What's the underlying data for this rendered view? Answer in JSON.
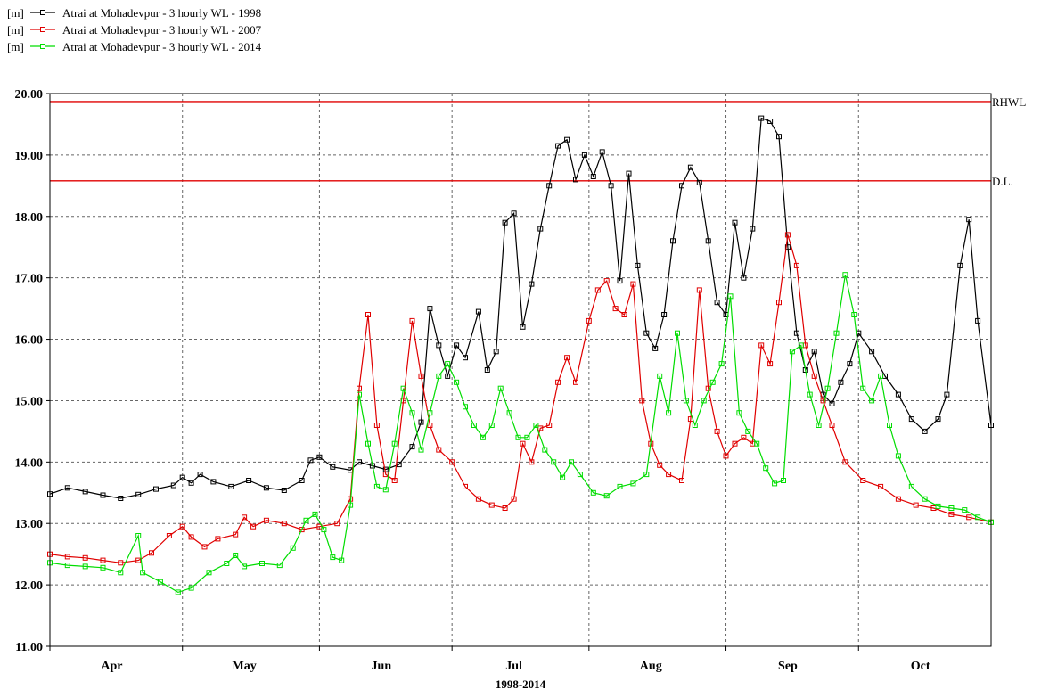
{
  "chart_data": {
    "type": "line",
    "xlabel": "1998-2014",
    "ylabel": "",
    "unit": "[m]",
    "ylim": [
      11.0,
      20.0
    ],
    "xlim": [
      "04-01",
      "10-31"
    ],
    "yticks": [
      "11.00",
      "12.00",
      "13.00",
      "14.00",
      "15.00",
      "16.00",
      "17.00",
      "18.00",
      "19.00",
      "20.00"
    ],
    "month_labels": [
      "Apr",
      "May",
      "Jun",
      "Jul",
      "Aug",
      "Sep",
      "Oct"
    ],
    "grid": true,
    "legend_position": "top-left",
    "reference_lines": [
      {
        "label": "RHWL",
        "value": 19.87,
        "color": "#e00000"
      },
      {
        "label": "D.L.",
        "value": 18.58,
        "color": "#e00000"
      }
    ],
    "series": [
      {
        "name": "Atrai at Mohadevpur - 3 hourly WL - 1998",
        "color": "#000000",
        "points": [
          [
            "04-01",
            13.48
          ],
          [
            "04-05",
            13.58
          ],
          [
            "04-09",
            13.52
          ],
          [
            "04-13",
            13.46
          ],
          [
            "04-17",
            13.41
          ],
          [
            "04-21",
            13.47
          ],
          [
            "04-25",
            13.56
          ],
          [
            "04-29",
            13.62
          ],
          [
            "05-01",
            13.75
          ],
          [
            "05-03",
            13.66
          ],
          [
            "05-05",
            13.8
          ],
          [
            "05-08",
            13.68
          ],
          [
            "05-12",
            13.6
          ],
          [
            "05-16",
            13.7
          ],
          [
            "05-20",
            13.58
          ],
          [
            "05-24",
            13.54
          ],
          [
            "05-28",
            13.7
          ],
          [
            "05-30",
            14.03
          ],
          [
            "06-01",
            14.08
          ],
          [
            "06-04",
            13.92
          ],
          [
            "06-08",
            13.87
          ],
          [
            "06-10",
            14.0
          ],
          [
            "06-13",
            13.94
          ],
          [
            "06-16",
            13.88
          ],
          [
            "06-19",
            13.96
          ],
          [
            "06-22",
            14.25
          ],
          [
            "06-24",
            14.65
          ],
          [
            "06-26",
            16.5
          ],
          [
            "06-28",
            15.9
          ],
          [
            "06-30",
            15.4
          ],
          [
            "07-02",
            15.9
          ],
          [
            "07-04",
            15.7
          ],
          [
            "07-07",
            16.45
          ],
          [
            "07-09",
            15.5
          ],
          [
            "07-11",
            15.8
          ],
          [
            "07-13",
            17.9
          ],
          [
            "07-15",
            18.05
          ],
          [
            "07-17",
            16.2
          ],
          [
            "07-19",
            16.9
          ],
          [
            "07-21",
            17.8
          ],
          [
            "07-23",
            18.5
          ],
          [
            "07-25",
            19.15
          ],
          [
            "07-27",
            19.25
          ],
          [
            "07-29",
            18.6
          ],
          [
            "07-31",
            19.0
          ],
          [
            "08-02",
            18.65
          ],
          [
            "08-04",
            19.05
          ],
          [
            "08-06",
            18.5
          ],
          [
            "08-08",
            16.95
          ],
          [
            "08-10",
            18.7
          ],
          [
            "08-12",
            17.2
          ],
          [
            "08-14",
            16.1
          ],
          [
            "08-16",
            15.85
          ],
          [
            "08-18",
            16.4
          ],
          [
            "08-20",
            17.6
          ],
          [
            "08-22",
            18.5
          ],
          [
            "08-24",
            18.8
          ],
          [
            "08-26",
            18.55
          ],
          [
            "08-28",
            17.6
          ],
          [
            "08-30",
            16.6
          ],
          [
            "09-01",
            16.4
          ],
          [
            "09-03",
            17.9
          ],
          [
            "09-05",
            17.0
          ],
          [
            "09-07",
            17.8
          ],
          [
            "09-09",
            19.6
          ],
          [
            "09-11",
            19.55
          ],
          [
            "09-13",
            19.3
          ],
          [
            "09-15",
            17.5
          ],
          [
            "09-17",
            16.1
          ],
          [
            "09-19",
            15.5
          ],
          [
            "09-21",
            15.8
          ],
          [
            "09-23",
            15.1
          ],
          [
            "09-25",
            14.95
          ],
          [
            "09-27",
            15.3
          ],
          [
            "09-29",
            15.6
          ],
          [
            "10-01",
            16.1
          ],
          [
            "10-04",
            15.8
          ],
          [
            "10-07",
            15.4
          ],
          [
            "10-10",
            15.1
          ],
          [
            "10-13",
            14.7
          ],
          [
            "10-16",
            14.5
          ],
          [
            "10-19",
            14.7
          ],
          [
            "10-21",
            15.1
          ],
          [
            "10-24",
            17.2
          ],
          [
            "10-26",
            17.95
          ],
          [
            "10-28",
            16.3
          ],
          [
            "10-31",
            14.6
          ]
        ]
      },
      {
        "name": "Atrai at Mohadevpur - 3 hourly WL - 2007",
        "color": "#e00000",
        "points": [
          [
            "04-01",
            12.5
          ],
          [
            "04-05",
            12.46
          ],
          [
            "04-09",
            12.44
          ],
          [
            "04-13",
            12.4
          ],
          [
            "04-17",
            12.36
          ],
          [
            "04-21",
            12.4
          ],
          [
            "04-24",
            12.52
          ],
          [
            "04-28",
            12.8
          ],
          [
            "05-01",
            12.95
          ],
          [
            "05-03",
            12.78
          ],
          [
            "05-06",
            12.62
          ],
          [
            "05-09",
            12.75
          ],
          [
            "05-13",
            12.82
          ],
          [
            "05-15",
            13.1
          ],
          [
            "05-17",
            12.95
          ],
          [
            "05-20",
            13.05
          ],
          [
            "05-24",
            13.0
          ],
          [
            "05-28",
            12.9
          ],
          [
            "06-01",
            12.95
          ],
          [
            "06-05",
            13.0
          ],
          [
            "06-08",
            13.4
          ],
          [
            "06-10",
            15.2
          ],
          [
            "06-12",
            16.4
          ],
          [
            "06-14",
            14.6
          ],
          [
            "06-16",
            13.8
          ],
          [
            "06-18",
            13.7
          ],
          [
            "06-20",
            15.0
          ],
          [
            "06-22",
            16.3
          ],
          [
            "06-24",
            15.4
          ],
          [
            "06-26",
            14.6
          ],
          [
            "06-28",
            14.2
          ],
          [
            "07-01",
            14.0
          ],
          [
            "07-04",
            13.6
          ],
          [
            "07-07",
            13.4
          ],
          [
            "07-10",
            13.3
          ],
          [
            "07-13",
            13.25
          ],
          [
            "07-15",
            13.4
          ],
          [
            "07-17",
            14.3
          ],
          [
            "07-19",
            14.0
          ],
          [
            "07-21",
            14.55
          ],
          [
            "07-23",
            14.6
          ],
          [
            "07-25",
            15.3
          ],
          [
            "07-27",
            15.7
          ],
          [
            "07-29",
            15.3
          ],
          [
            "08-01",
            16.3
          ],
          [
            "08-03",
            16.8
          ],
          [
            "08-05",
            16.95
          ],
          [
            "08-07",
            16.5
          ],
          [
            "08-09",
            16.4
          ],
          [
            "08-11",
            16.9
          ],
          [
            "08-13",
            15.0
          ],
          [
            "08-15",
            14.3
          ],
          [
            "08-17",
            13.95
          ],
          [
            "08-19",
            13.8
          ],
          [
            "08-22",
            13.7
          ],
          [
            "08-24",
            14.7
          ],
          [
            "08-26",
            16.8
          ],
          [
            "08-28",
            15.2
          ],
          [
            "08-30",
            14.5
          ],
          [
            "09-01",
            14.1
          ],
          [
            "09-03",
            14.3
          ],
          [
            "09-05",
            14.4
          ],
          [
            "09-07",
            14.3
          ],
          [
            "09-09",
            15.9
          ],
          [
            "09-11",
            15.6
          ],
          [
            "09-13",
            16.6
          ],
          [
            "09-15",
            17.7
          ],
          [
            "09-17",
            17.2
          ],
          [
            "09-19",
            15.9
          ],
          [
            "09-21",
            15.4
          ],
          [
            "09-23",
            15.0
          ],
          [
            "09-25",
            14.6
          ],
          [
            "09-28",
            14.0
          ],
          [
            "10-02",
            13.7
          ],
          [
            "10-06",
            13.6
          ],
          [
            "10-10",
            13.4
          ],
          [
            "10-14",
            13.3
          ],
          [
            "10-18",
            13.25
          ],
          [
            "10-22",
            13.15
          ],
          [
            "10-26",
            13.1
          ],
          [
            "10-31",
            13.02
          ]
        ]
      },
      {
        "name": "Atrai at Mohadevpur - 3 hourly WL - 2014",
        "color": "#00dd00",
        "points": [
          [
            "04-01",
            12.36
          ],
          [
            "04-05",
            12.32
          ],
          [
            "04-09",
            12.3
          ],
          [
            "04-13",
            12.28
          ],
          [
            "04-17",
            12.2
          ],
          [
            "04-21",
            12.8
          ],
          [
            "04-22",
            12.2
          ],
          [
            "04-26",
            12.05
          ],
          [
            "04-30",
            11.88
          ],
          [
            "05-03",
            11.95
          ],
          [
            "05-07",
            12.2
          ],
          [
            "05-11",
            12.35
          ],
          [
            "05-13",
            12.48
          ],
          [
            "05-15",
            12.3
          ],
          [
            "05-19",
            12.35
          ],
          [
            "05-23",
            12.32
          ],
          [
            "05-26",
            12.6
          ],
          [
            "05-29",
            13.05
          ],
          [
            "05-31",
            13.15
          ],
          [
            "06-02",
            12.9
          ],
          [
            "06-04",
            12.45
          ],
          [
            "06-06",
            12.4
          ],
          [
            "06-08",
            13.3
          ],
          [
            "06-10",
            15.1
          ],
          [
            "06-12",
            14.3
          ],
          [
            "06-14",
            13.6
          ],
          [
            "06-16",
            13.55
          ],
          [
            "06-18",
            14.3
          ],
          [
            "06-20",
            15.2
          ],
          [
            "06-22",
            14.8
          ],
          [
            "06-24",
            14.2
          ],
          [
            "06-26",
            14.8
          ],
          [
            "06-28",
            15.4
          ],
          [
            "06-30",
            15.6
          ],
          [
            "07-02",
            15.3
          ],
          [
            "07-04",
            14.9
          ],
          [
            "07-06",
            14.6
          ],
          [
            "07-08",
            14.4
          ],
          [
            "07-10",
            14.6
          ],
          [
            "07-12",
            15.2
          ],
          [
            "07-14",
            14.8
          ],
          [
            "07-16",
            14.4
          ],
          [
            "07-18",
            14.4
          ],
          [
            "07-20",
            14.6
          ],
          [
            "07-22",
            14.2
          ],
          [
            "07-24",
            14.0
          ],
          [
            "07-26",
            13.75
          ],
          [
            "07-28",
            14.0
          ],
          [
            "07-30",
            13.8
          ],
          [
            "08-02",
            13.5
          ],
          [
            "08-05",
            13.45
          ],
          [
            "08-08",
            13.6
          ],
          [
            "08-11",
            13.65
          ],
          [
            "08-14",
            13.8
          ],
          [
            "08-17",
            15.4
          ],
          [
            "08-19",
            14.8
          ],
          [
            "08-21",
            16.1
          ],
          [
            "08-23",
            15.0
          ],
          [
            "08-25",
            14.6
          ],
          [
            "08-27",
            15.0
          ],
          [
            "08-29",
            15.3
          ],
          [
            "08-31",
            15.6
          ],
          [
            "09-02",
            16.7
          ],
          [
            "09-04",
            14.8
          ],
          [
            "09-06",
            14.5
          ],
          [
            "09-08",
            14.3
          ],
          [
            "09-10",
            13.9
          ],
          [
            "09-12",
            13.65
          ],
          [
            "09-14",
            13.7
          ],
          [
            "09-16",
            15.8
          ],
          [
            "09-18",
            15.9
          ],
          [
            "09-20",
            15.1
          ],
          [
            "09-22",
            14.6
          ],
          [
            "09-24",
            15.2
          ],
          [
            "09-26",
            16.1
          ],
          [
            "09-28",
            17.05
          ],
          [
            "09-30",
            16.4
          ],
          [
            "10-02",
            15.2
          ],
          [
            "10-04",
            15.0
          ],
          [
            "10-06",
            15.4
          ],
          [
            "10-08",
            14.6
          ],
          [
            "10-10",
            14.1
          ],
          [
            "10-13",
            13.6
          ],
          [
            "10-16",
            13.4
          ],
          [
            "10-19",
            13.28
          ],
          [
            "10-22",
            13.25
          ],
          [
            "10-25",
            13.22
          ],
          [
            "10-28",
            13.1
          ],
          [
            "10-31",
            13.02
          ]
        ]
      }
    ]
  }
}
